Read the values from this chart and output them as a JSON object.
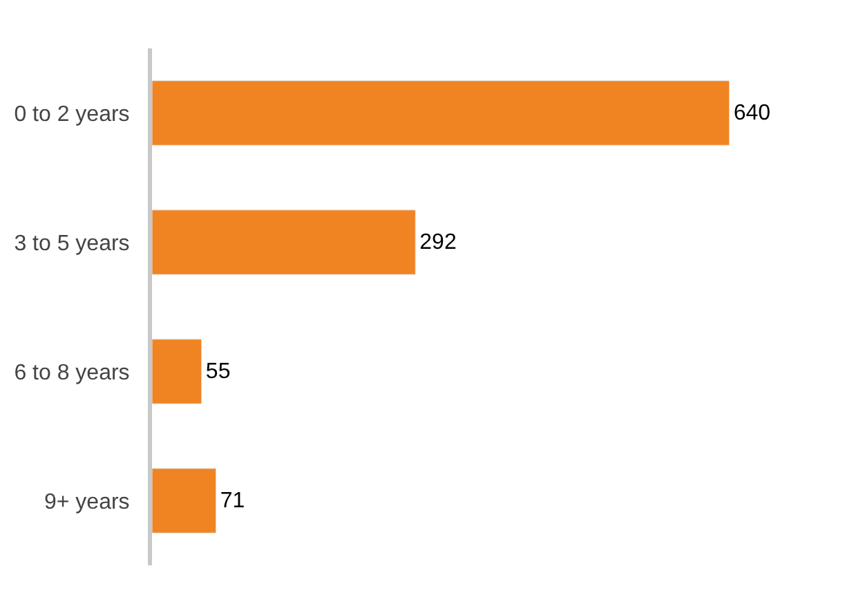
{
  "chart_data": {
    "type": "bar",
    "orientation": "horizontal",
    "categories": [
      "0 to 2 years",
      "3 to 5 years",
      "6 to 8 years",
      "9+ years"
    ],
    "values": [
      640,
      292,
      55,
      71
    ],
    "color": "#f08423",
    "data_labels": true
  }
}
